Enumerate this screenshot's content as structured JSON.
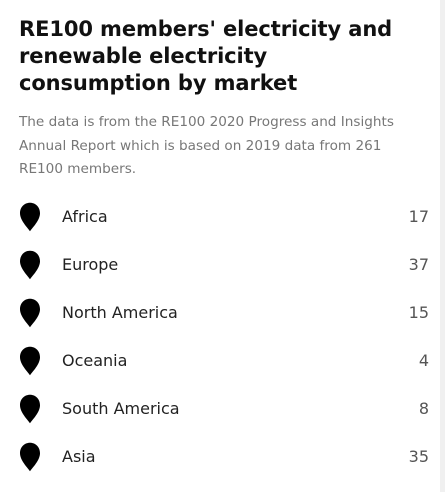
{
  "header": {
    "title": "RE100 members' electricity and renewable electricity consumption by market",
    "subtitle": "The data is from the RE100 2020 Progress and Insights Annual Report which is based on 2019 data from 261 RE100 members."
  },
  "markets": [
    {
      "label": "Africa",
      "value": "17",
      "icon": "map-pin-icon"
    },
    {
      "label": "Europe",
      "value": "37",
      "icon": "map-pin-icon"
    },
    {
      "label": "North America",
      "value": "15",
      "icon": "map-pin-icon"
    },
    {
      "label": "Oceania",
      "value": "4",
      "icon": "map-pin-icon"
    },
    {
      "label": "South America",
      "value": "8",
      "icon": "map-pin-icon"
    },
    {
      "label": "Asia",
      "value": "35",
      "icon": "map-pin-icon"
    }
  ],
  "colors": {
    "title": "#111111",
    "subtitle": "#777777",
    "pin": "#000000",
    "label": "#222222",
    "value": "#555555"
  }
}
